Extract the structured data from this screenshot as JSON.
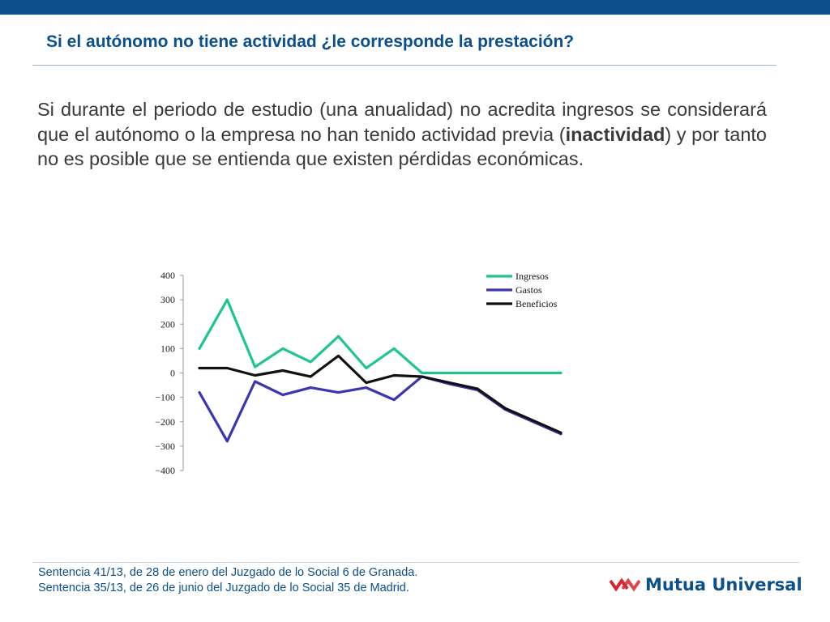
{
  "slide": {
    "title": "Si el autónomo no tiene actividad ¿le corresponde la prestación?",
    "body_before": "Si durante el periodo de estudio (una anualidad) no acredita ingresos se considerará que el autónomo o la empresa no han tenido actividad previa (",
    "body_bold": "inactividad",
    "body_after": ") y por tanto no es posible que se entienda que existen pérdidas económicas.",
    "accent_color": "#0b4f8c"
  },
  "footer": {
    "notes": [
      "Sentencia  41/13, de 28 de enero del Juzgado de lo Social 6 de Granada.",
      "Sentencia 35/13, de 26 de junio del Juzgado de lo Social 35 de Madrid."
    ]
  },
  "logo": {
    "name": "Mutua Universal",
    "mark_color": "#d9262c"
  },
  "chart_data": {
    "type": "line",
    "x": [
      1,
      2,
      3,
      4,
      5,
      6,
      7,
      8,
      9,
      10,
      11,
      12,
      13,
      14
    ],
    "ylim": [
      -400,
      400
    ],
    "y_ticks": [
      400,
      300,
      200,
      100,
      0,
      -100,
      -200,
      -300,
      -400
    ],
    "grid": false,
    "legend_position": "top-right",
    "series": [
      {
        "name": "Ingresos",
        "color": "#1fc490",
        "values": [
          100,
          300,
          25,
          100,
          45,
          150,
          20,
          100,
          0,
          0,
          0,
          0,
          0,
          0
        ]
      },
      {
        "name": "Gastos",
        "color": "#3a35b0",
        "values": [
          -80,
          -280,
          -35,
          -90,
          -60,
          -80,
          -60,
          -110,
          -15,
          -45,
          -70,
          -150,
          -200,
          -250
        ]
      },
      {
        "name": "Beneficios",
        "color": "#111111",
        "values": [
          20,
          20,
          -10,
          10,
          -15,
          70,
          -40,
          -10,
          -15,
          -40,
          -65,
          -145,
          -195,
          -245
        ]
      }
    ]
  }
}
